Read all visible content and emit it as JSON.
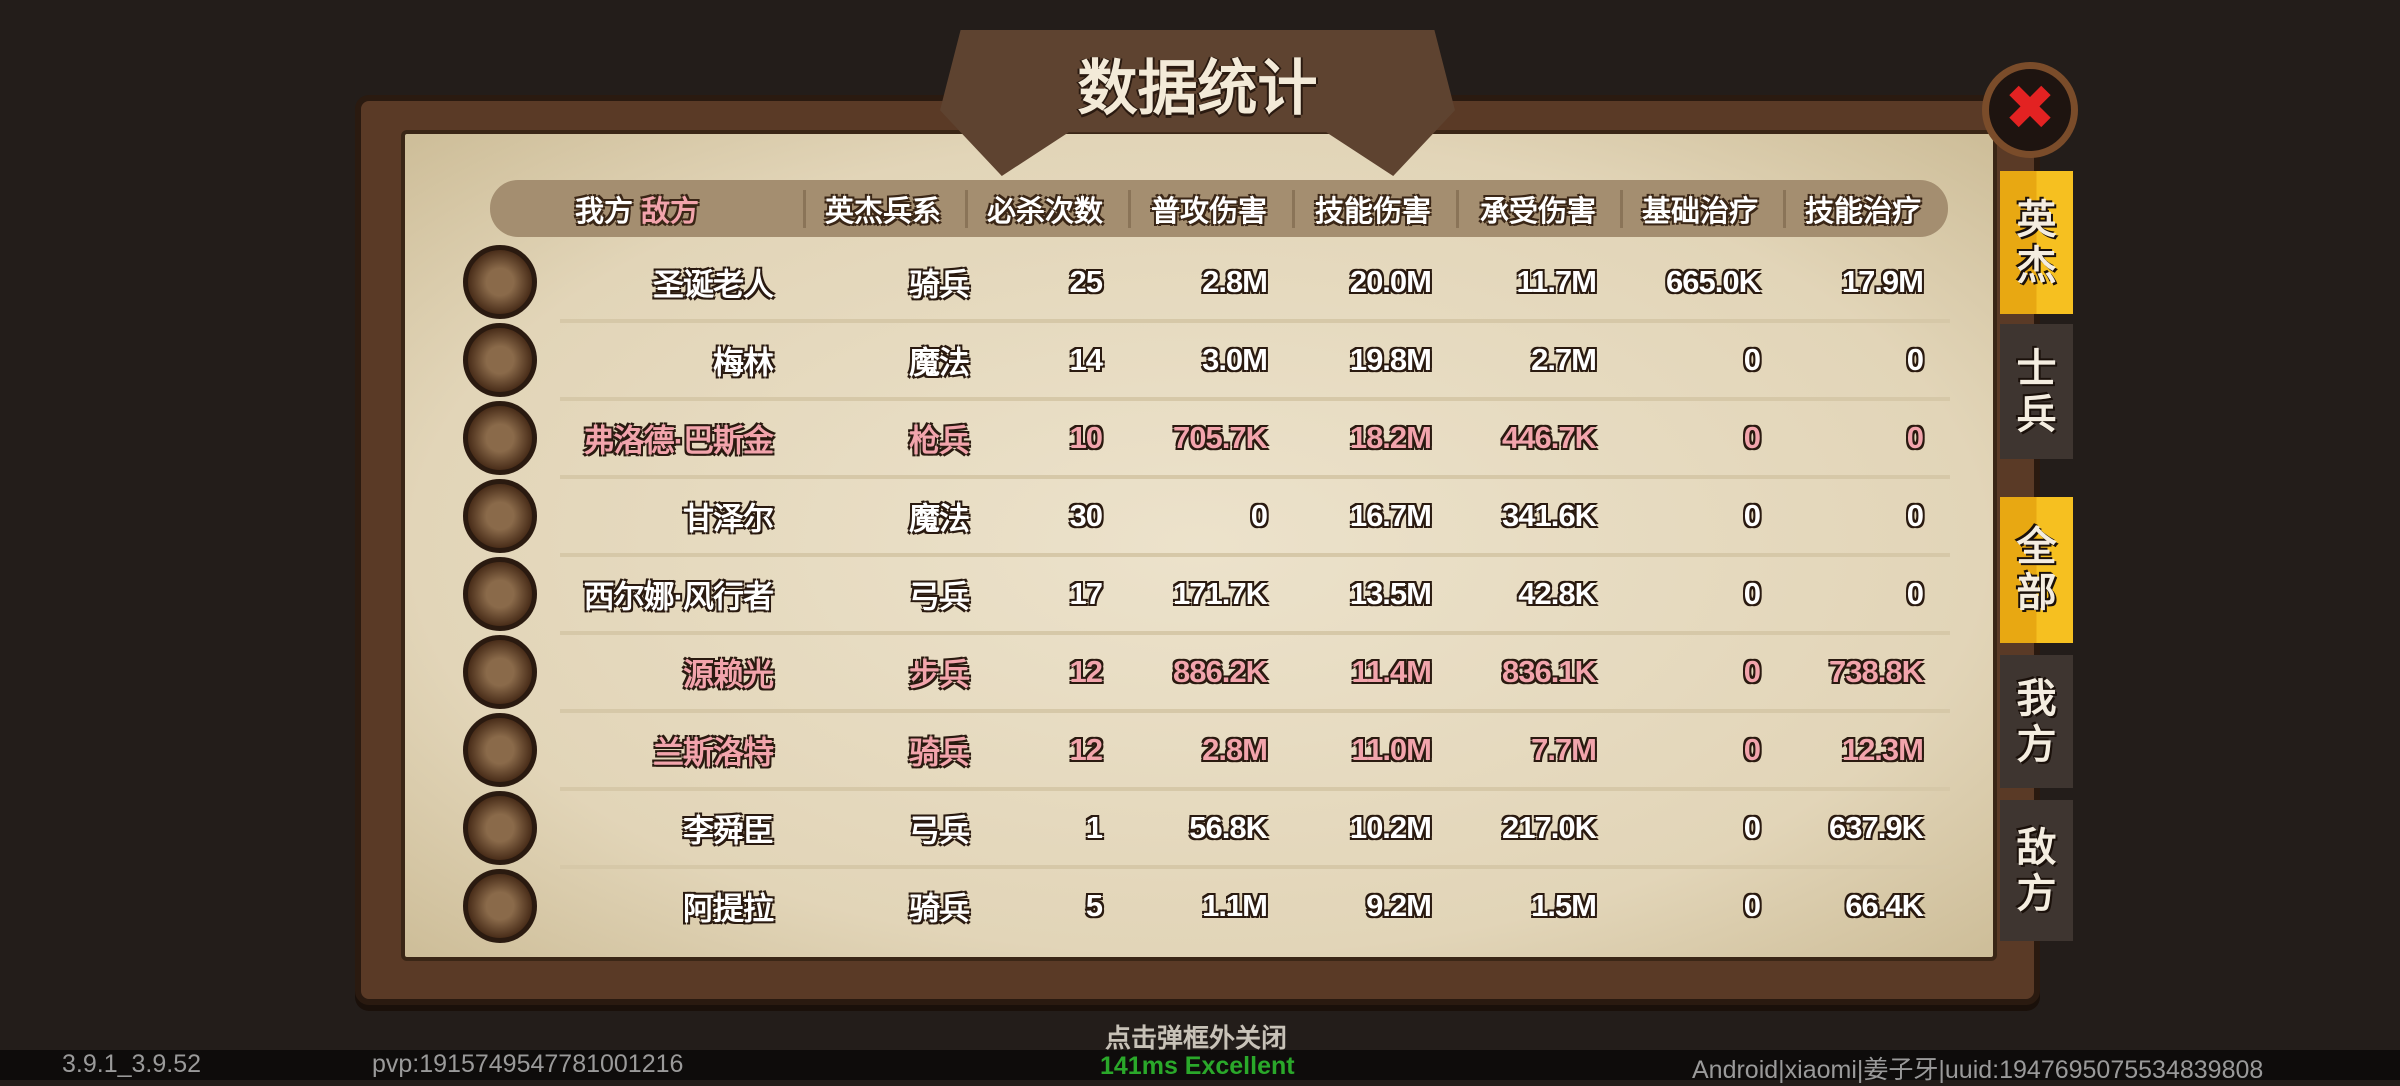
{
  "title": "数据统计",
  "close_icon": "close-x-icon",
  "header": {
    "our": "我方",
    "enemy": "敌方",
    "columns": [
      "英杰兵系",
      "必杀次数",
      "普攻伤害",
      "技能伤害",
      "承受伤害",
      "基础治疗",
      "技能治疗"
    ]
  },
  "rows": [
    {
      "name": "圣诞老人",
      "class": "骑兵",
      "kills": "25",
      "normal_dmg": "2.8M",
      "skill_dmg": "20.0M",
      "taken": "11.7M",
      "base_heal": "665.0K",
      "skill_heal": "17.9M",
      "side": "our"
    },
    {
      "name": "梅林",
      "class": "魔法",
      "kills": "14",
      "normal_dmg": "3.0M",
      "skill_dmg": "19.8M",
      "taken": "2.7M",
      "base_heal": "0",
      "skill_heal": "0",
      "side": "our"
    },
    {
      "name": "弗洛德·巴斯金",
      "class": "枪兵",
      "kills": "10",
      "normal_dmg": "705.7K",
      "skill_dmg": "18.2M",
      "taken": "446.7K",
      "base_heal": "0",
      "skill_heal": "0",
      "side": "enemy"
    },
    {
      "name": "甘泽尔",
      "class": "魔法",
      "kills": "30",
      "normal_dmg": "0",
      "skill_dmg": "16.7M",
      "taken": "341.6K",
      "base_heal": "0",
      "skill_heal": "0",
      "side": "our"
    },
    {
      "name": "西尔娜·风行者",
      "class": "弓兵",
      "kills": "17",
      "normal_dmg": "171.7K",
      "skill_dmg": "13.5M",
      "taken": "42.8K",
      "base_heal": "0",
      "skill_heal": "0",
      "side": "our"
    },
    {
      "name": "源赖光",
      "class": "步兵",
      "kills": "12",
      "normal_dmg": "886.2K",
      "skill_dmg": "11.4M",
      "taken": "836.1K",
      "base_heal": "0",
      "skill_heal": "738.8K",
      "side": "enemy"
    },
    {
      "name": "兰斯洛特",
      "class": "骑兵",
      "kills": "12",
      "normal_dmg": "2.8M",
      "skill_dmg": "11.0M",
      "taken": "7.7M",
      "base_heal": "0",
      "skill_heal": "12.3M",
      "side": "enemy"
    },
    {
      "name": "李舜臣",
      "class": "弓兵",
      "kills": "1",
      "normal_dmg": "56.8K",
      "skill_dmg": "10.2M",
      "taken": "217.0K",
      "base_heal": "0",
      "skill_heal": "637.9K",
      "side": "our"
    },
    {
      "name": "阿提拉",
      "class": "骑兵",
      "kills": "5",
      "normal_dmg": "1.1M",
      "skill_dmg": "9.2M",
      "taken": "1.5M",
      "base_heal": "0",
      "skill_heal": "66.4K",
      "side": "our"
    }
  ],
  "tabs_type": [
    {
      "label": "英杰",
      "active": true
    },
    {
      "label": "士兵",
      "active": false
    }
  ],
  "tabs_side": [
    {
      "label": "全部",
      "active": true
    },
    {
      "label": "我方",
      "active": false
    },
    {
      "label": "敌方",
      "active": false
    }
  ],
  "hint": "点击弹框外关闭",
  "footer": {
    "version": "3.9.1_3.9.52",
    "pvp": "pvp:1915749547781001216",
    "ping": "141ms Excellent",
    "device": "Android|xiaomi|姜子牙|uuid:1947695075534839808"
  },
  "colors": {
    "enemy_text": "#f2a4ac",
    "tab_active": "#f6c020",
    "close": "#e32222",
    "ping": "#2aa82a"
  }
}
